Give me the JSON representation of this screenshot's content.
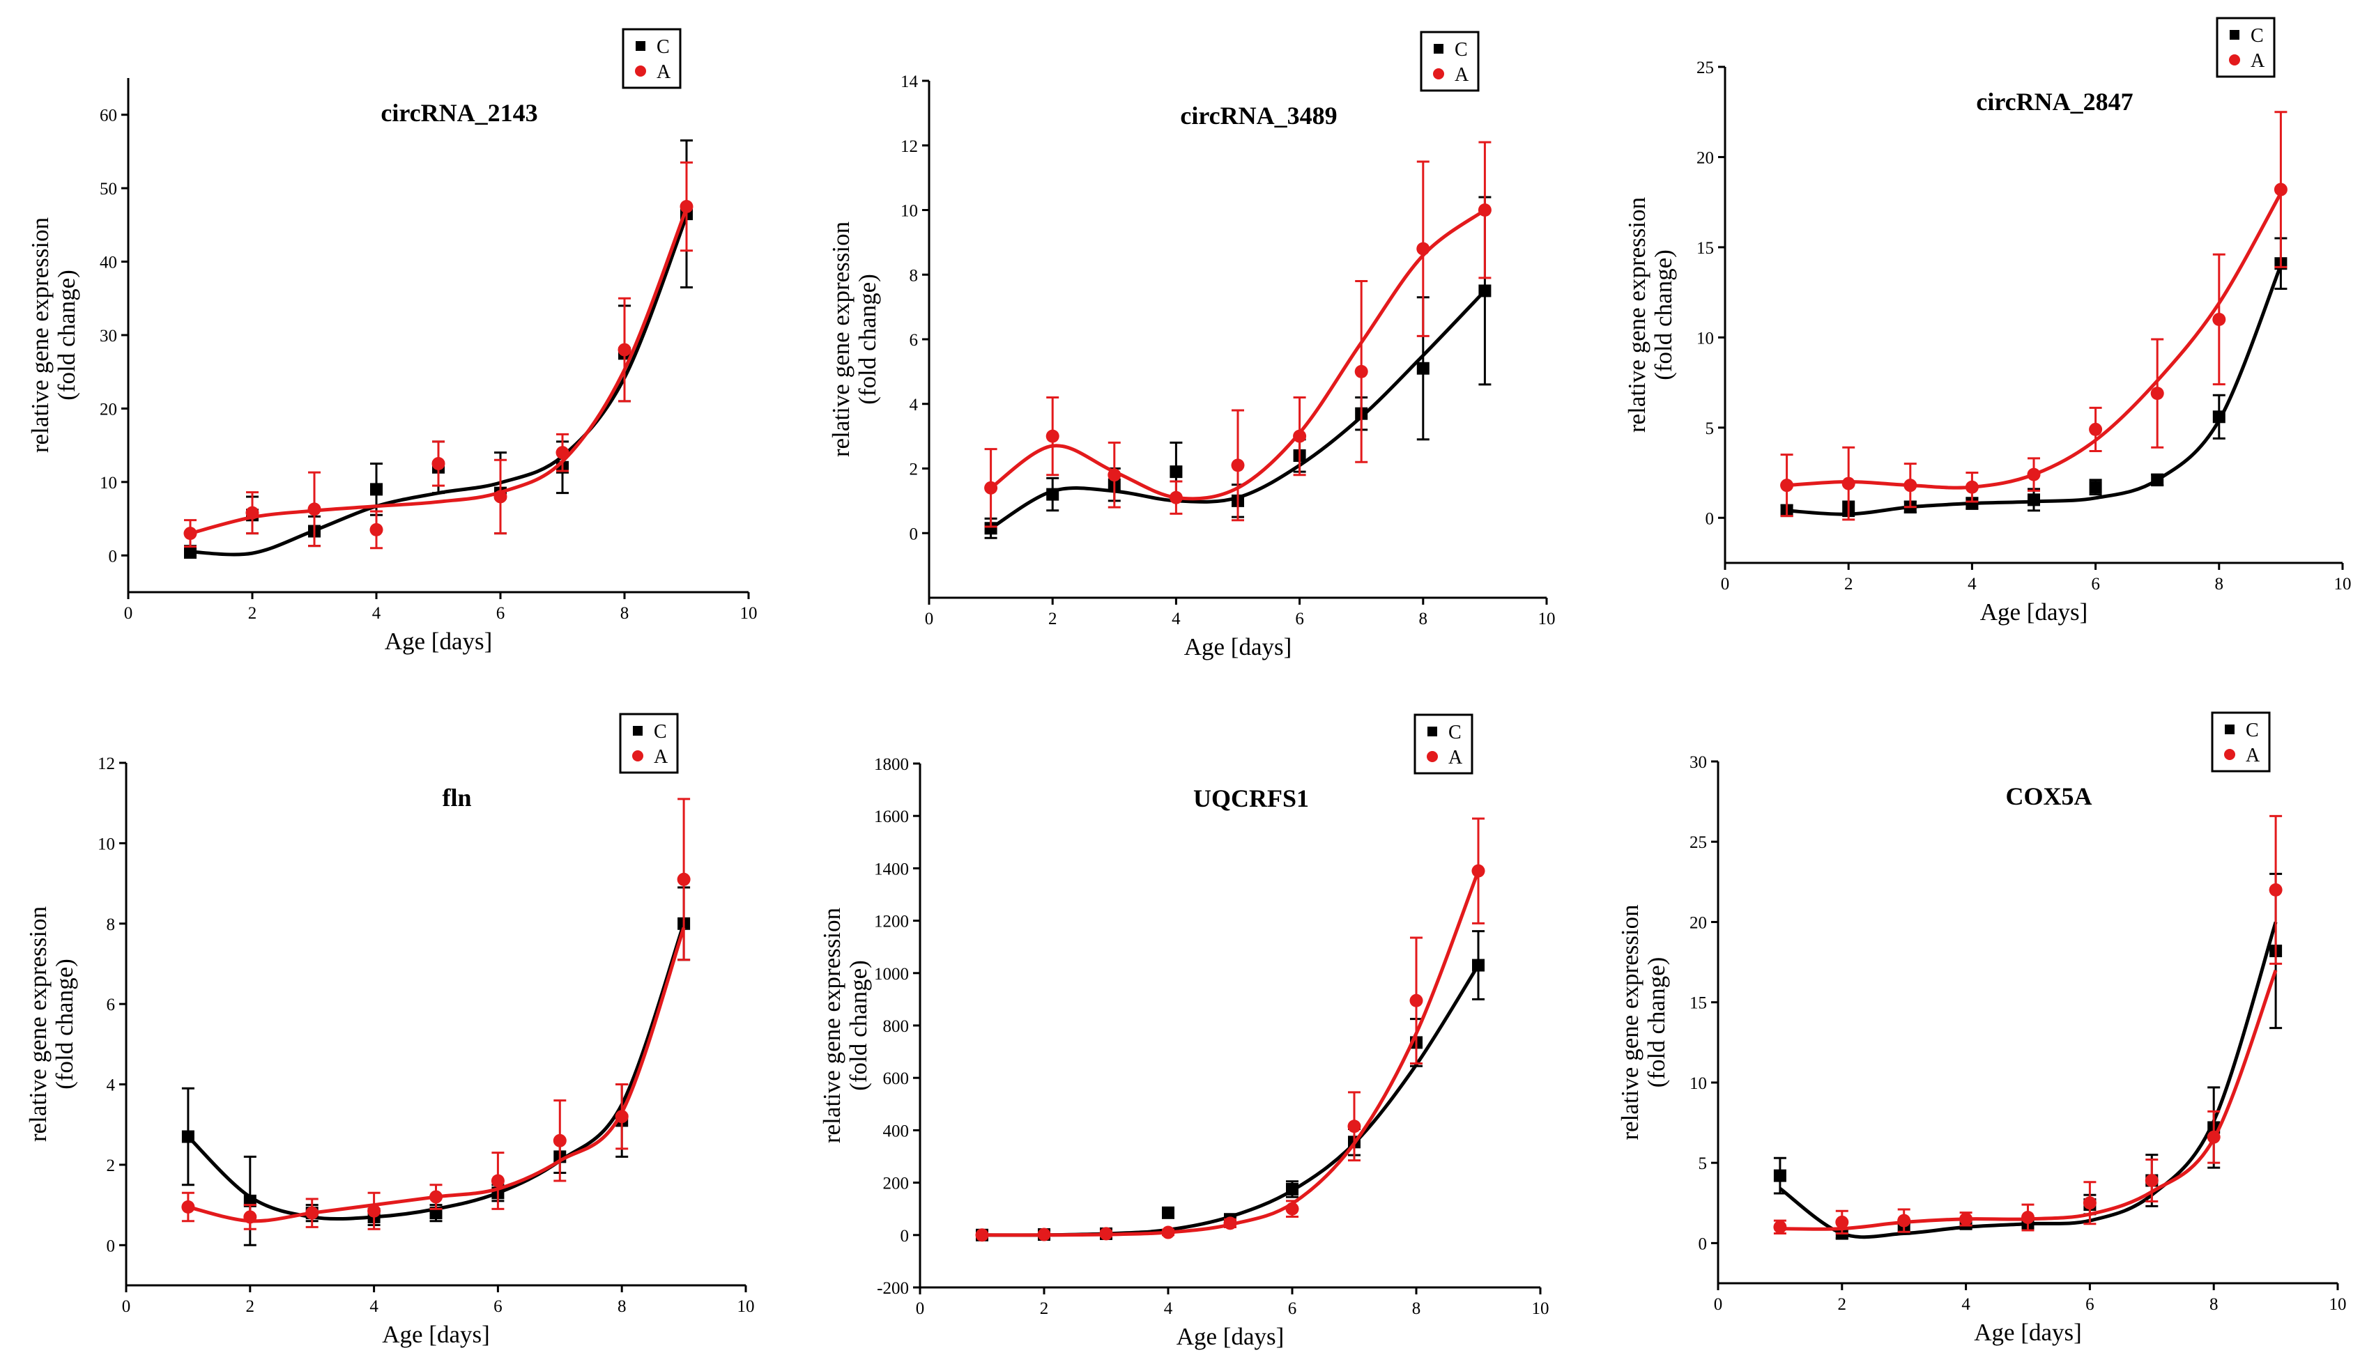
{
  "colors": {
    "C": "#000000",
    "A": "#e31a1c"
  },
  "chart_data": [
    {
      "type": "scatter",
      "title": "circRNA_2143",
      "xlabel": "Age [days]",
      "ylabel": [
        "relative gene expression",
        "(fold change)"
      ],
      "xlim": [
        0,
        10
      ],
      "ylim": [
        -5,
        65
      ],
      "xticks": [
        0,
        2,
        4,
        6,
        8,
        10
      ],
      "yticks": [
        0,
        10,
        20,
        30,
        40,
        50,
        60
      ],
      "legend": {
        "position": "top-right",
        "entries": [
          "C",
          "A"
        ]
      },
      "x": [
        1,
        2,
        3,
        4,
        5,
        6,
        7,
        8,
        9
      ],
      "series": [
        {
          "name": "C",
          "values": [
            0.5,
            5.5,
            3.3,
            9.0,
            12.0,
            8.5,
            12.0,
            27.5,
            46.5
          ],
          "errors": [
            0.8,
            2.5,
            2.0,
            3.5,
            3.5,
            5.5,
            3.5,
            6.5,
            10.0
          ],
          "fit": [
            0.5,
            0.3,
            3.4,
            6.7,
            8.5,
            9.9,
            13.5,
            24.2,
            46.2
          ]
        },
        {
          "name": "A",
          "values": [
            3.0,
            5.8,
            6.3,
            3.5,
            12.5,
            8.0,
            14.0,
            28.0,
            47.5
          ],
          "errors": [
            1.8,
            2.8,
            5.0,
            2.5,
            3.0,
            5.0,
            2.5,
            7.0,
            6.0
          ],
          "fit": [
            3.0,
            5.2,
            6.1,
            6.7,
            7.3,
            8.6,
            12.8,
            25.3,
            47.3
          ]
        }
      ]
    },
    {
      "type": "scatter",
      "title": "circRNA_3489",
      "xlabel": "Age [days]",
      "ylabel": [
        "relative gene expression",
        "(fold change)"
      ],
      "xlim": [
        0,
        10
      ],
      "ylim": [
        -2,
        14
      ],
      "xticks": [
        0,
        2,
        4,
        6,
        8,
        10
      ],
      "yticks": [
        0,
        2,
        4,
        6,
        8,
        10,
        12,
        14
      ],
      "legend": {
        "position": "top-right",
        "entries": [
          "C",
          "A"
        ]
      },
      "x": [
        1,
        2,
        3,
        4,
        5,
        6,
        7,
        8,
        9
      ],
      "series": [
        {
          "name": "C",
          "values": [
            0.15,
            1.2,
            1.5,
            1.9,
            1.0,
            2.4,
            3.7,
            5.1,
            7.5
          ],
          "errors": [
            0.3,
            0.5,
            0.5,
            0.9,
            0.5,
            0.5,
            0.5,
            2.2,
            2.9
          ],
          "fit": [
            0.15,
            1.3,
            1.3,
            1.0,
            1.1,
            2.1,
            3.6,
            5.5,
            7.5
          ]
        },
        {
          "name": "A",
          "values": [
            1.4,
            3.0,
            1.8,
            1.1,
            2.1,
            3.0,
            5.0,
            8.8,
            10.0
          ],
          "errors": [
            1.2,
            1.2,
            1.0,
            0.5,
            1.7,
            1.2,
            2.8,
            2.7,
            2.1
          ],
          "fit": [
            1.4,
            2.7,
            1.9,
            1.1,
            1.4,
            3.1,
            5.9,
            8.6,
            10.0
          ]
        }
      ]
    },
    {
      "type": "scatter",
      "title": "circRNA_2847",
      "xlabel": "Age [days]",
      "ylabel": [
        "relative gene expression",
        "(fold change)"
      ],
      "xlim": [
        0,
        10
      ],
      "ylim": [
        -2.5,
        25
      ],
      "xticks": [
        0,
        2,
        4,
        6,
        8,
        10
      ],
      "yticks": [
        0,
        5,
        10,
        15,
        20,
        25
      ],
      "legend": {
        "position": "top-right",
        "entries": [
          "C",
          "A"
        ]
      },
      "x": [
        1,
        2,
        3,
        4,
        5,
        6,
        7,
        8,
        9
      ],
      "series": [
        {
          "name": "C",
          "values": [
            0.4,
            0.5,
            0.6,
            0.8,
            1.0,
            1.7,
            2.1,
            5.6,
            14.1
          ],
          "errors": [
            0.3,
            0.4,
            0.3,
            0.3,
            0.6,
            0.4,
            0.3,
            1.2,
            1.4
          ],
          "fit": [
            0.4,
            0.2,
            0.6,
            0.8,
            0.9,
            1.1,
            2.1,
            5.4,
            14.0
          ]
        },
        {
          "name": "A",
          "values": [
            1.8,
            1.9,
            1.8,
            1.7,
            2.4,
            4.9,
            6.9,
            11.0,
            18.2
          ],
          "errors": [
            1.7,
            2.0,
            1.2,
            0.8,
            0.9,
            1.2,
            3.0,
            3.6,
            4.3
          ],
          "fit": [
            1.8,
            2.0,
            1.8,
            1.7,
            2.4,
            4.3,
            7.6,
            11.9,
            18.0
          ]
        }
      ]
    },
    {
      "type": "scatter",
      "title": "fln",
      "xlabel": "Age [days]",
      "ylabel": [
        "relative gene expression",
        "(fold change)"
      ],
      "xlim": [
        0,
        10
      ],
      "ylim": [
        -1,
        12
      ],
      "xticks": [
        0,
        2,
        4,
        6,
        8,
        10
      ],
      "yticks": [
        0,
        2,
        4,
        6,
        8,
        10,
        12
      ],
      "legend": {
        "position": "top-right",
        "entries": [
          "C",
          "A"
        ]
      },
      "x": [
        1,
        2,
        3,
        4,
        5,
        6,
        7,
        8,
        9
      ],
      "series": [
        {
          "name": "C",
          "values": [
            2.7,
            1.1,
            0.8,
            0.7,
            0.8,
            1.3,
            2.2,
            3.1,
            8.0
          ],
          "errors": [
            1.2,
            1.1,
            0.2,
            0.2,
            0.2,
            0.2,
            0.4,
            0.9,
            0.9
          ],
          "fit": [
            2.7,
            1.2,
            0.7,
            0.7,
            0.9,
            1.3,
            2.1,
            3.5,
            8.0
          ]
        },
        {
          "name": "A",
          "values": [
            0.95,
            0.7,
            0.8,
            0.85,
            1.2,
            1.6,
            2.6,
            3.2,
            9.1
          ],
          "errors": [
            0.35,
            0.3,
            0.35,
            0.45,
            0.3,
            0.7,
            1.0,
            0.8,
            2.0
          ],
          "fit": [
            0.95,
            0.6,
            0.8,
            1.0,
            1.2,
            1.4,
            2.1,
            3.3,
            7.9
          ]
        }
      ]
    },
    {
      "type": "scatter",
      "title": "UQCRFS1",
      "xlabel": "Age [days]",
      "ylabel": [
        "relative gene expression",
        "(fold change)"
      ],
      "xlim": [
        0,
        10
      ],
      "ylim": [
        -200,
        1800
      ],
      "xticks": [
        0,
        2,
        4,
        6,
        8,
        10
      ],
      "yticks": [
        -200,
        0,
        200,
        400,
        600,
        800,
        1000,
        1200,
        1400,
        1600,
        1800
      ],
      "legend": {
        "position": "top-right",
        "entries": [
          "C",
          "A"
        ]
      },
      "x": [
        1,
        2,
        3,
        4,
        5,
        6,
        7,
        8,
        9
      ],
      "series": [
        {
          "name": "C",
          "values": [
            0,
            2,
            5,
            85,
            60,
            175,
            355,
            735,
            1030
          ],
          "errors": [
            5,
            5,
            10,
            10,
            15,
            30,
            50,
            90,
            130
          ],
          "fit": [
            0,
            0,
            5,
            20,
            70,
            170,
            350,
            650,
            1030
          ]
        },
        {
          "name": "A",
          "values": [
            0,
            2,
            5,
            10,
            45,
            100,
            415,
            895,
            1390
          ],
          "errors": [
            5,
            5,
            10,
            10,
            15,
            30,
            130,
            240,
            200
          ],
          "fit": [
            0,
            0,
            2,
            10,
            40,
            120,
            350,
            770,
            1390
          ]
        }
      ]
    },
    {
      "type": "scatter",
      "title": "COX5A",
      "xlabel": "Age [days]",
      "ylabel": [
        "relative gene expression",
        "(fold change)"
      ],
      "xlim": [
        0,
        10
      ],
      "ylim": [
        -2.5,
        30
      ],
      "xticks": [
        0,
        2,
        4,
        6,
        8,
        10
      ],
      "yticks": [
        0,
        5,
        10,
        15,
        20,
        25,
        30
      ],
      "legend": {
        "position": "top-right",
        "entries": [
          "C",
          "A"
        ]
      },
      "x": [
        1,
        2,
        3,
        4,
        5,
        6,
        7,
        8,
        9
      ],
      "series": [
        {
          "name": "C",
          "values": [
            4.2,
            0.6,
            0.9,
            1.2,
            1.2,
            2.4,
            3.9,
            7.2,
            18.2
          ],
          "errors": [
            1.1,
            0.3,
            0.3,
            0.3,
            0.4,
            0.6,
            1.6,
            2.5,
            4.8
          ],
          "fit": [
            3.4,
            0.6,
            0.6,
            1.0,
            1.2,
            1.4,
            3.0,
            7.6,
            20.0
          ]
        },
        {
          "name": "A",
          "values": [
            1.0,
            1.3,
            1.4,
            1.5,
            1.6,
            2.5,
            3.9,
            6.6,
            22.0
          ],
          "errors": [
            0.4,
            0.7,
            0.7,
            0.4,
            0.8,
            1.3,
            1.3,
            1.6,
            4.6
          ],
          "fit": [
            0.9,
            0.9,
            1.3,
            1.5,
            1.5,
            1.8,
            3.2,
            6.5,
            17.0
          ]
        }
      ]
    }
  ]
}
